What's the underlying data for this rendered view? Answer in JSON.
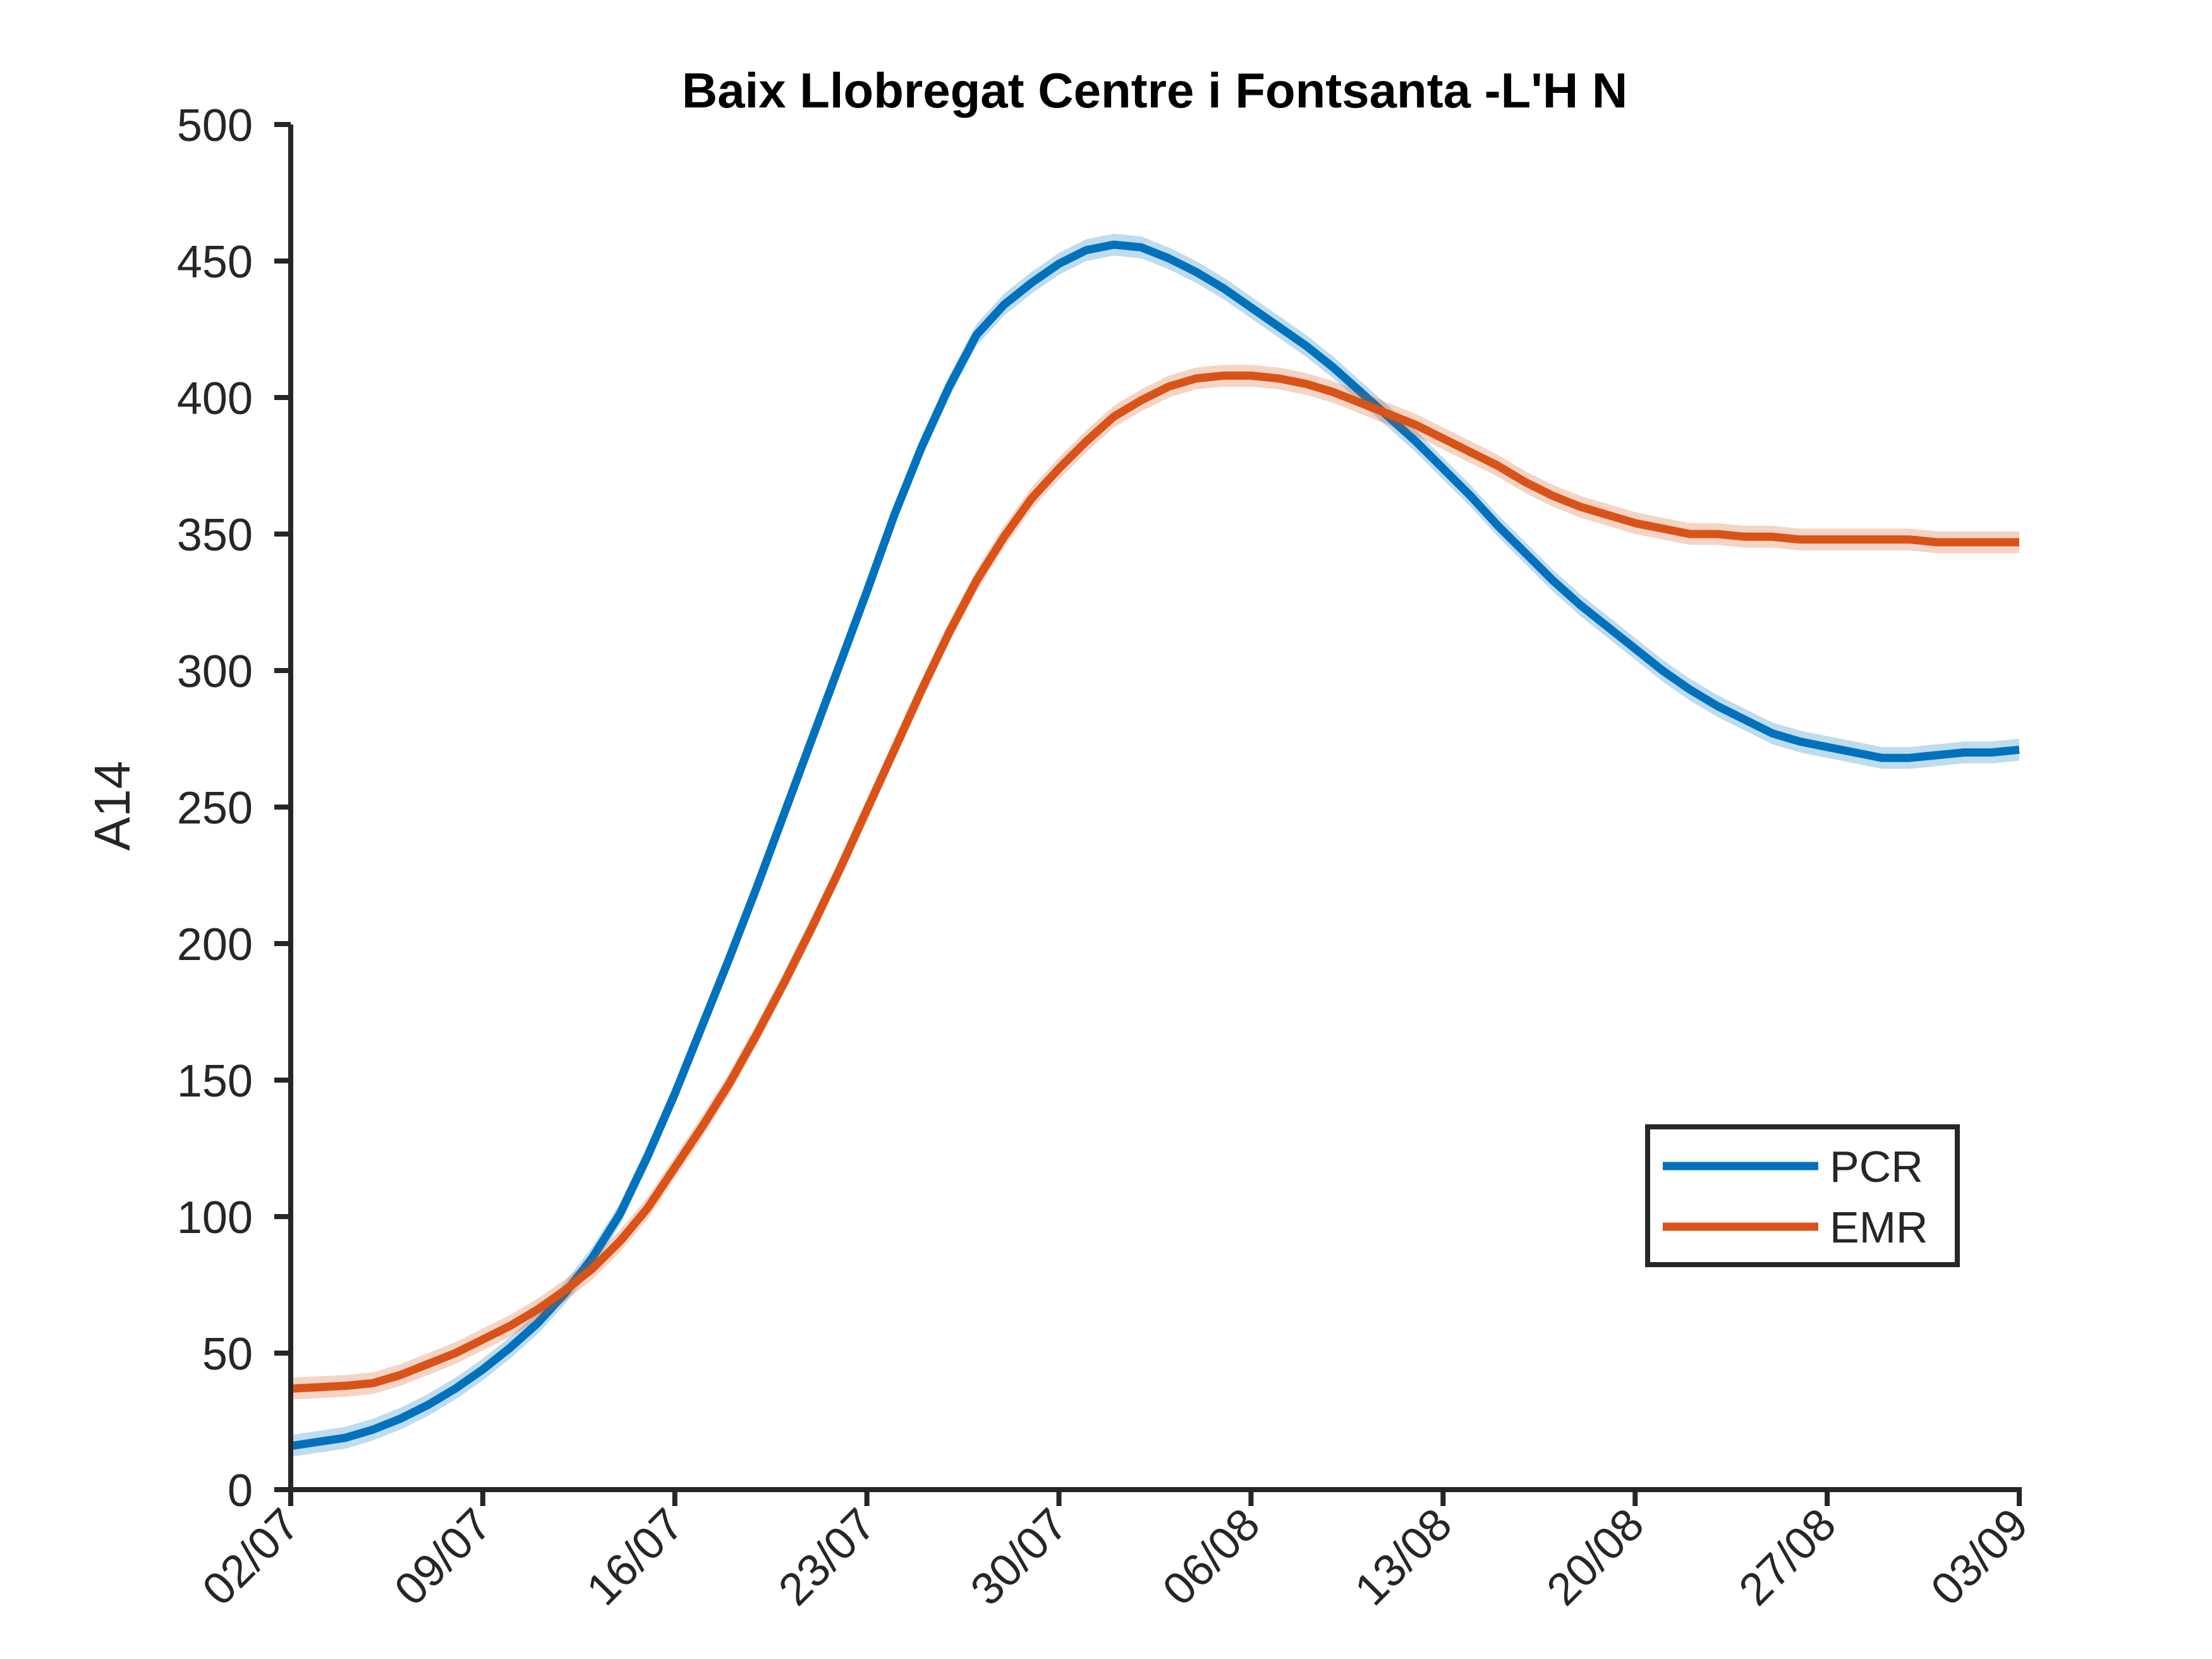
{
  "chart_data": {
    "type": "line",
    "title": "Baix Llobregat Centre i Fontsanta -L'H N",
    "xlabel": "",
    "ylabel": "A14",
    "ylim": [
      0,
      500
    ],
    "yticks": [
      0,
      50,
      100,
      150,
      200,
      250,
      300,
      350,
      400,
      450,
      500
    ],
    "xlim": [
      "02/07",
      "03/09"
    ],
    "xticks": [
      "02/07",
      "09/07",
      "16/07",
      "23/07",
      "30/07",
      "06/08",
      "13/08",
      "20/08",
      "27/08",
      "03/09"
    ],
    "legend_position": "lower-right",
    "grid": false,
    "x": [
      "02/07",
      "04/07",
      "05/07",
      "06/07",
      "07/07",
      "08/07",
      "09/07",
      "10/07",
      "11/07",
      "12/07",
      "13/07",
      "14/07",
      "15/07",
      "16/07",
      "17/07",
      "18/07",
      "19/07",
      "20/07",
      "21/07",
      "22/07",
      "23/07",
      "24/07",
      "25/07",
      "26/07",
      "27/07",
      "28/07",
      "29/07",
      "30/07",
      "31/07",
      "01/08",
      "02/08",
      "03/08",
      "04/08",
      "05/08",
      "06/08",
      "07/08",
      "08/08",
      "09/08",
      "10/08",
      "11/08",
      "12/08",
      "13/08",
      "14/08",
      "15/08",
      "16/08",
      "17/08",
      "18/08",
      "19/08",
      "20/08",
      "21/08",
      "22/08",
      "23/08",
      "24/08",
      "25/08",
      "26/08",
      "27/08",
      "28/08",
      "29/08",
      "30/08",
      "31/08",
      "01/09",
      "02/09",
      "03/09"
    ],
    "series": [
      {
        "name": "PCR",
        "color": "#0072BD",
        "band": 4,
        "values": [
          16,
          19,
          22,
          26,
          31,
          37,
          44,
          52,
          61,
          72,
          85,
          101,
          122,
          145,
          170,
          195,
          221,
          248,
          275,
          302,
          329,
          357,
          382,
          404,
          423,
          434,
          442,
          449,
          454,
          456,
          455,
          451,
          446,
          440,
          433,
          426,
          419,
          411,
          402,
          393,
          384,
          374,
          364,
          353,
          343,
          333,
          324,
          316,
          308,
          300,
          293,
          287,
          282,
          277,
          274,
          272,
          270,
          268,
          268,
          269,
          270,
          270,
          271
        ]
      },
      {
        "name": "EMR",
        "color": "#D95319",
        "band": 4,
        "values": [
          37,
          38,
          39,
          42,
          46,
          50,
          55,
          60,
          66,
          73,
          81,
          91,
          103,
          118,
          133,
          149,
          167,
          186,
          206,
          227,
          249,
          271,
          293,
          314,
          333,
          349,
          363,
          374,
          384,
          393,
          399,
          404,
          407,
          408,
          408,
          407,
          405,
          402,
          398,
          394,
          390,
          385,
          380,
          375,
          369,
          364,
          360,
          357,
          354,
          352,
          350,
          350,
          349,
          349,
          348,
          348,
          348,
          348,
          348,
          347,
          347,
          347,
          347
        ]
      }
    ]
  }
}
